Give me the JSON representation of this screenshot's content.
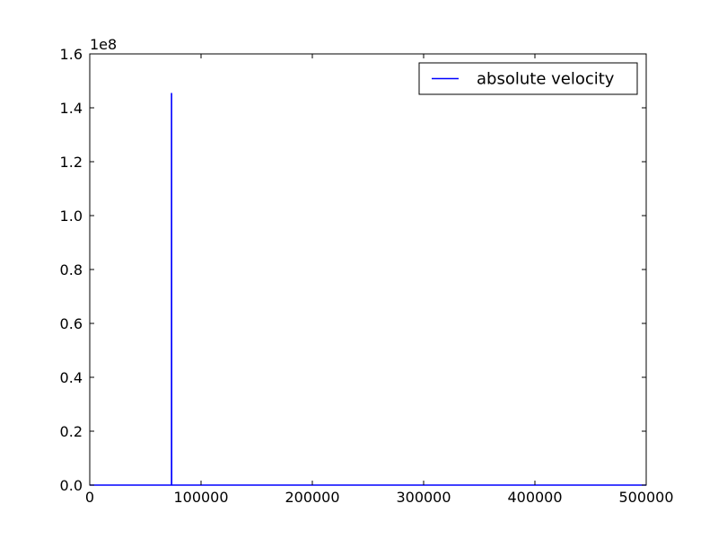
{
  "chart_data": {
    "type": "line",
    "title": "",
    "xlabel": "",
    "ylabel": "",
    "xlim": [
      0,
      500000
    ],
    "ylim": [
      0,
      160000000
    ],
    "y_offset_label": "1e8",
    "x_ticks": [
      {
        "value": 0,
        "label": "0"
      },
      {
        "value": 100000,
        "label": "100000"
      },
      {
        "value": 200000,
        "label": "200000"
      },
      {
        "value": 300000,
        "label": "300000"
      },
      {
        "value": 400000,
        "label": "400000"
      },
      {
        "value": 500000,
        "label": "500000"
      }
    ],
    "y_ticks": [
      {
        "value": 0,
        "label": "0.0"
      },
      {
        "value": 20000000,
        "label": "0.2"
      },
      {
        "value": 40000000,
        "label": "0.4"
      },
      {
        "value": 60000000,
        "label": "0.6"
      },
      {
        "value": 80000000,
        "label": "0.8"
      },
      {
        "value": 100000000,
        "label": "1.0"
      },
      {
        "value": 120000000,
        "label": "1.2"
      },
      {
        "value": 140000000,
        "label": "1.4"
      },
      {
        "value": 160000000,
        "label": "1.6"
      }
    ],
    "grid": false,
    "legend": {
      "position": "top-right"
    },
    "series": [
      {
        "name": "absolute velocity",
        "color": "#0000ff",
        "x": [
          0,
          73500,
          73500,
          73600,
          500000
        ],
        "y": [
          0,
          0,
          145500000,
          0,
          0
        ]
      }
    ]
  }
}
